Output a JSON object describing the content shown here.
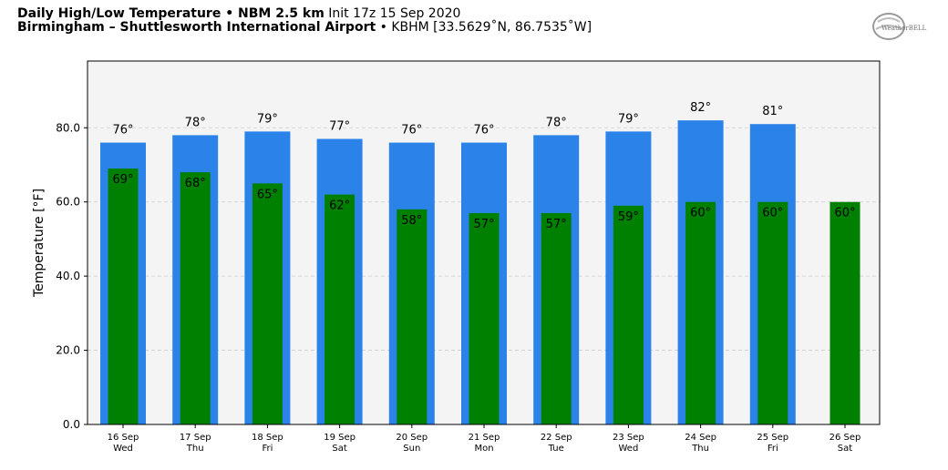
{
  "header": {
    "line1_bold": "Daily High/Low Temperature • NBM 2.5 km",
    "line1_normal": "Init 17z 15 Sep 2020",
    "line2_bold": "Birmingham – Shuttlesworth International Airport",
    "line2_normal": "KBHM [33.5629˚N, 86.7535˚W]"
  },
  "logo": {
    "text": "WeatherBELL",
    "icon": "weatherbell-logo"
  },
  "colors": {
    "high": "#2b83ea",
    "low": "#008000",
    "plot_bg": "#f4f4f4",
    "grid": "#cccccc"
  },
  "chart_data": {
    "type": "bar",
    "ylabel": "Temperature [°F]",
    "ylim": [
      0,
      98
    ],
    "yticks": [
      "0.0",
      "20.0",
      "40.0",
      "60.0",
      "80.0"
    ],
    "categories": [
      {
        "date": "16 Sep",
        "day": "Wed"
      },
      {
        "date": "17 Sep",
        "day": "Thu"
      },
      {
        "date": "18 Sep",
        "day": "Fri"
      },
      {
        "date": "19 Sep",
        "day": "Sat"
      },
      {
        "date": "20 Sep",
        "day": "Sun"
      },
      {
        "date": "21 Sep",
        "day": "Mon"
      },
      {
        "date": "22 Sep",
        "day": "Tue"
      },
      {
        "date": "23 Sep",
        "day": "Wed"
      },
      {
        "date": "24 Sep",
        "day": "Thu"
      },
      {
        "date": "25 Sep",
        "day": "Fri"
      },
      {
        "date": "26 Sep",
        "day": "Sat"
      }
    ],
    "series": [
      {
        "key": "high",
        "values": [
          76,
          78,
          79,
          77,
          76,
          76,
          78,
          79,
          82,
          81,
          null
        ],
        "labels": [
          "76°",
          "78°",
          "79°",
          "77°",
          "76°",
          "76°",
          "78°",
          "79°",
          "82°",
          "81°",
          ""
        ]
      },
      {
        "key": "low",
        "values": [
          69,
          68,
          65,
          62,
          58,
          57,
          57,
          59,
          60,
          60,
          60
        ],
        "labels": [
          "69°",
          "68°",
          "65°",
          "62°",
          "58°",
          "57°",
          "57°",
          "59°",
          "60°",
          "60°",
          "60°"
        ]
      }
    ],
    "grid": true
  }
}
